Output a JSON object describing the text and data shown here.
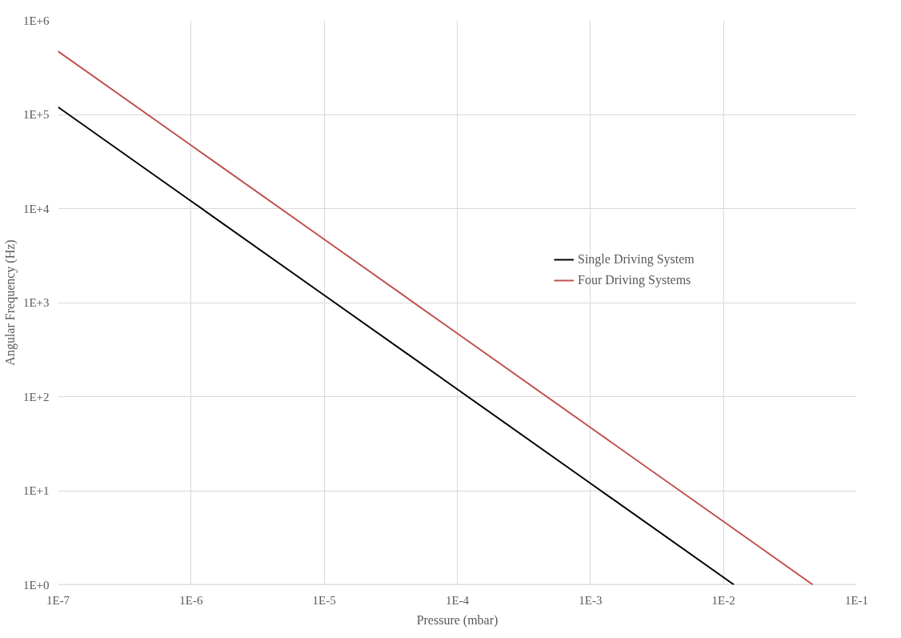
{
  "chart_data": {
    "type": "line",
    "xlabel": "Pressure (mbar)",
    "ylabel": "Angular Frequency (Hz)",
    "log": "xy",
    "grid": true,
    "legend": "right",
    "marker": "none",
    "line_style": "solid",
    "xlim": [
      1e-07,
      0.1
    ],
    "ylim": [
      1,
      1000000
    ],
    "xticks": [
      {
        "value": 1e-07,
        "label": "1E-7"
      },
      {
        "value": 1e-06,
        "label": "1E-6"
      },
      {
        "value": 1e-05,
        "label": "1E-5"
      },
      {
        "value": 0.0001,
        "label": "1E-4"
      },
      {
        "value": 0.001,
        "label": "1E-3"
      },
      {
        "value": 0.01,
        "label": "1E-2"
      },
      {
        "value": 0.1,
        "label": "1E-1"
      }
    ],
    "yticks": [
      {
        "value": 1,
        "label": "1E+0"
      },
      {
        "value": 10,
        "label": "1E+1"
      },
      {
        "value": 100,
        "label": "1E+2"
      },
      {
        "value": 1000,
        "label": "1E+3"
      },
      {
        "value": 10000,
        "label": "1E+4"
      },
      {
        "value": 100000,
        "label": "1E+5"
      },
      {
        "value": 1000000,
        "label": "1E+6"
      }
    ],
    "series": [
      {
        "name": "Single Driving System",
        "color": "#000000",
        "x": [
          1e-07,
          1e-06,
          1e-05,
          0.0001,
          0.001,
          0.012
        ],
        "values": [
          120000,
          12000,
          1200,
          120,
          12,
          1
        ]
      },
      {
        "name": "Four Driving Systems",
        "color": "#c0504d",
        "x": [
          1e-07,
          1e-06,
          1e-05,
          0.0001,
          0.001,
          0.01,
          0.047
        ],
        "values": [
          470000,
          47000,
          4700,
          470,
          47,
          4.7,
          1
        ]
      }
    ]
  }
}
